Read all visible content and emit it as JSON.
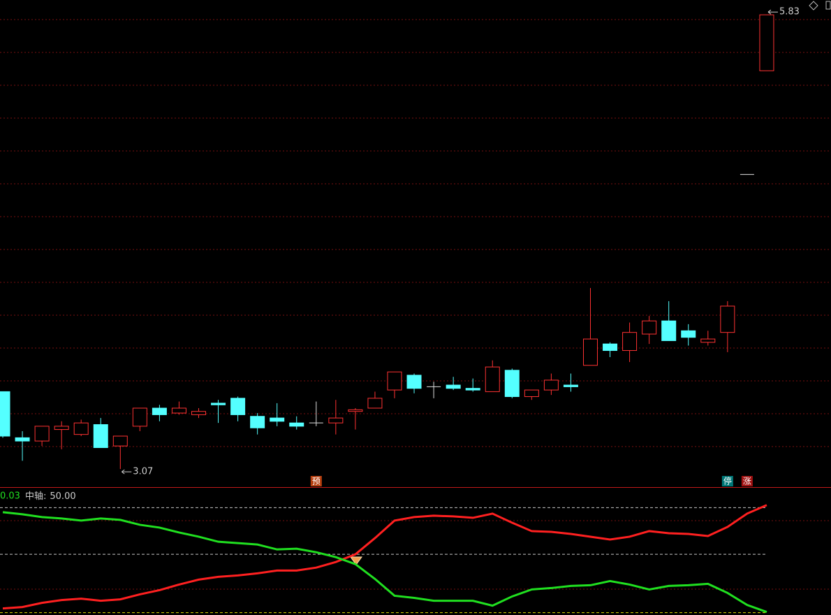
{
  "chart_data": [
    {
      "type": "candlestick",
      "open": [
        3.54,
        3.26,
        3.24,
        3.31,
        3.28,
        3.34,
        3.21,
        3.33,
        3.44,
        3.41,
        3.4,
        3.47,
        3.5,
        3.39,
        3.38,
        3.35,
        3.35,
        3.35,
        3.42,
        3.44,
        3.55,
        3.64,
        3.57,
        3.58,
        3.56,
        3.54,
        3.67,
        3.51,
        3.55,
        3.58,
        3.7,
        3.83,
        3.79,
        3.89,
        3.97,
        3.91,
        3.84,
        3.9,
        4.86,
        5.49
      ],
      "high": [
        3.54,
        3.3,
        3.33,
        3.36,
        3.37,
        3.38,
        3.27,
        3.44,
        3.46,
        3.48,
        3.44,
        3.49,
        3.51,
        3.41,
        3.47,
        3.39,
        3.48,
        3.49,
        3.44,
        3.54,
        3.66,
        3.65,
        3.6,
        3.63,
        3.62,
        3.73,
        3.68,
        3.55,
        3.65,
        3.65,
        4.17,
        3.84,
        3.96,
        4.0,
        4.09,
        3.95,
        3.91,
        4.09,
        4.86,
        5.83
      ],
      "low": [
        3.26,
        3.12,
        3.21,
        3.19,
        3.27,
        3.2,
        3.07,
        3.3,
        3.36,
        3.4,
        3.38,
        3.35,
        3.36,
        3.28,
        3.33,
        3.31,
        3.33,
        3.28,
        3.31,
        3.44,
        3.5,
        3.53,
        3.5,
        3.55,
        3.54,
        3.54,
        3.5,
        3.49,
        3.52,
        3.54,
        3.7,
        3.75,
        3.72,
        3.83,
        3.85,
        3.82,
        3.82,
        3.78,
        4.86,
        5.49
      ],
      "close": [
        3.27,
        3.24,
        3.33,
        3.33,
        3.35,
        3.2,
        3.27,
        3.44,
        3.4,
        3.44,
        3.42,
        3.46,
        3.4,
        3.32,
        3.36,
        3.33,
        3.35,
        3.38,
        3.43,
        3.5,
        3.66,
        3.56,
        3.57,
        3.56,
        3.55,
        3.69,
        3.51,
        3.55,
        3.61,
        3.57,
        3.86,
        3.79,
        3.9,
        3.97,
        3.85,
        3.87,
        3.86,
        4.06,
        4.86,
        5.83
      ],
      "up_color": "#ff3232",
      "down_color": "#54ffff",
      "flat_color": "#e0e0e0",
      "ylim": [
        2.96,
        5.92
      ],
      "markers": [
        {
          "index": 16,
          "label": "预",
          "color": "#b84010"
        },
        {
          "index": 37,
          "label": "停",
          "color": "#007878"
        },
        {
          "index": 38,
          "label": "涨",
          "color": "#a01010"
        }
      ]
    },
    {
      "type": "line",
      "value_text": "0.03",
      "midline": {
        "name": "中轴:",
        "value": 50,
        "label": "50.00",
        "color": "#c8c8c8"
      },
      "dashed_lines": [
        {
          "value": 90,
          "color": "#c8c8c8"
        },
        {
          "value": 0,
          "color": "#e0e000"
        }
      ],
      "series": [
        {
          "color": "#ff2020",
          "values": [
            3.6,
            4.8,
            8.4,
            10.8,
            12.0,
            10.2,
            11.4,
            15.7,
            19.3,
            24.1,
            28.3,
            30.7,
            31.9,
            33.7,
            36.1,
            36.1,
            38.6,
            43.4,
            50.0,
            63.9,
            78.9,
            81.9,
            83.1,
            82.5,
            81.3,
            84.9,
            77.1,
            69.9,
            69.3,
            67.5,
            65.1,
            62.7,
            65.1,
            69.9,
            68.1,
            67.5,
            65.7,
            73.5,
            84.9,
            92.2
          ]
        },
        {
          "color": "#20e020",
          "values": [
            86.1,
            84.3,
            81.9,
            80.7,
            78.9,
            80.7,
            79.5,
            75.3,
            72.9,
            68.7,
            65.1,
            60.8,
            59.6,
            58.4,
            54.2,
            54.8,
            51.8,
            47.6,
            41.6,
            28.9,
            14.5,
            12.7,
            10.2,
            10.2,
            10.2,
            6.0,
            13.9,
            19.9,
            21.1,
            22.9,
            23.5,
            27.1,
            24.1,
            19.9,
            22.9,
            23.5,
            24.7,
            16.9,
            6.6,
            0.6
          ]
        }
      ],
      "ylim": [
        -2,
        107
      ]
    }
  ]
}
